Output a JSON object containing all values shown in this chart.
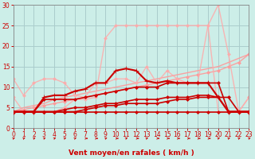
{
  "background_color": "#cceee8",
  "grid_color": "#aacccc",
  "xlabel": "Vent moyen/en rafales ( km/h )",
  "xlim": [
    0,
    23
  ],
  "ylim": [
    0,
    30
  ],
  "yticks": [
    0,
    5,
    10,
    15,
    20,
    25,
    30
  ],
  "xticks": [
    0,
    1,
    2,
    3,
    4,
    5,
    6,
    7,
    8,
    9,
    10,
    11,
    12,
    13,
    14,
    15,
    16,
    17,
    18,
    19,
    20,
    21,
    22,
    23
  ],
  "series": [
    {
      "x": [
        0,
        1,
        2,
        3,
        4,
        5,
        6,
        7,
        8,
        9,
        10,
        11,
        12,
        13,
        14,
        15,
        16,
        17,
        18,
        19,
        20,
        21,
        22,
        23
      ],
      "y": [
        4,
        4,
        4,
        4,
        4,
        4,
        4,
        4,
        4,
        4,
        4,
        4,
        4,
        4,
        4,
        4,
        4,
        4,
        4,
        4,
        4,
        4,
        4,
        4
      ],
      "color": "#cc0000",
      "lw": 1.2,
      "marker": "D",
      "ms": 2,
      "markevery": 1,
      "alpha": 1.0,
      "zorder": 3
    },
    {
      "x": [
        0,
        1,
        2,
        3,
        4,
        5,
        6,
        7,
        8,
        9,
        10,
        11,
        12,
        13,
        14,
        15,
        16,
        17,
        18,
        19,
        20,
        21,
        22,
        23
      ],
      "y": [
        4,
        4,
        4,
        4,
        4,
        4.5,
        5,
        5,
        5.5,
        6,
        6,
        6.5,
        7,
        7,
        7,
        7.5,
        7.5,
        7.5,
        8,
        8,
        7.5,
        4,
        4,
        4
      ],
      "color": "#cc0000",
      "lw": 1.2,
      "marker": "D",
      "ms": 2,
      "markevery": 1,
      "alpha": 1.0,
      "zorder": 3
    },
    {
      "x": [
        0,
        1,
        2,
        3,
        4,
        5,
        6,
        7,
        8,
        9,
        10,
        11,
        12,
        13,
        14,
        15,
        16,
        17,
        18,
        19,
        20,
        21,
        22,
        23
      ],
      "y": [
        4,
        4,
        4,
        7,
        7,
        7,
        7,
        7.5,
        8,
        8.5,
        9,
        9.5,
        10,
        10,
        10,
        11,
        11,
        11,
        11,
        11,
        11,
        4,
        4,
        4
      ],
      "color": "#cc0000",
      "lw": 1.2,
      "marker": "D",
      "ms": 2,
      "markevery": 1,
      "alpha": 1.0,
      "zorder": 3
    },
    {
      "x": [
        0,
        1,
        2,
        3,
        4,
        5,
        6,
        7,
        8,
        9,
        10,
        11,
        12,
        13,
        14,
        15,
        16,
        17,
        18,
        19,
        20,
        21,
        22,
        23
      ],
      "y": [
        4,
        4,
        4,
        7.5,
        8,
        8,
        9,
        9.5,
        11,
        11,
        14,
        14.5,
        14,
        11.5,
        11,
        11.5,
        11,
        11,
        11,
        11,
        7.5,
        4,
        4,
        4
      ],
      "color": "#cc0000",
      "lw": 1.5,
      "marker": "+",
      "ms": 4,
      "markevery": 1,
      "alpha": 1.0,
      "zorder": 4
    },
    {
      "x": [
        0,
        1,
        2,
        3,
        4,
        5,
        6,
        7,
        8,
        9,
        10,
        11,
        12,
        13,
        14,
        15,
        16,
        17,
        18,
        19,
        20,
        21,
        22,
        23
      ],
      "y": [
        4,
        4,
        4,
        4,
        4,
        4,
        4,
        4.5,
        5,
        5.5,
        5.5,
        6,
        6,
        6,
        6,
        6.5,
        7,
        7,
        7.5,
        7.5,
        7.5,
        7.5,
        4,
        4
      ],
      "color": "#cc0000",
      "lw": 1.2,
      "marker": "D",
      "ms": 2,
      "markevery": 1,
      "alpha": 1.0,
      "zorder": 3
    },
    {
      "x": [
        0,
        1,
        2,
        3,
        4,
        5,
        6,
        7,
        8,
        9,
        10,
        11,
        12,
        13,
        14,
        15,
        16,
        17,
        18,
        19,
        20,
        21,
        22,
        23
      ],
      "y": [
        4,
        4.5,
        5,
        5.5,
        6,
        6.5,
        7,
        7.5,
        8,
        8.5,
        9,
        9.5,
        10,
        10.5,
        11,
        11.5,
        12,
        12.5,
        13,
        13.5,
        14,
        15,
        16,
        18
      ],
      "color": "#ff9999",
      "lw": 1.0,
      "marker": "D",
      "ms": 2,
      "markevery": 1,
      "alpha": 0.9,
      "zorder": 2
    },
    {
      "x": [
        0,
        1,
        2,
        3,
        4,
        5,
        6,
        7,
        8,
        9,
        10,
        11,
        12,
        13,
        14,
        15,
        16,
        17,
        18,
        19,
        20,
        21,
        22,
        23
      ],
      "y": [
        4,
        5,
        5.5,
        6,
        7,
        7.5,
        8,
        8.5,
        9,
        9.5,
        10,
        10.5,
        11,
        11.5,
        12,
        12.5,
        13,
        13.5,
        14,
        14.5,
        15,
        16,
        17,
        18
      ],
      "color": "#ff9999",
      "lw": 1.0,
      "marker": null,
      "ms": 0,
      "markevery": 1,
      "alpha": 0.9,
      "zorder": 2
    },
    {
      "x": [
        0,
        1,
        2,
        3,
        4,
        5,
        6,
        7,
        8,
        9,
        10,
        11,
        12,
        13,
        14,
        15,
        16,
        17,
        18,
        19,
        20,
        21,
        22,
        23
      ],
      "y": [
        12,
        8,
        11,
        12,
        12,
        11,
        8,
        7.5,
        11,
        11,
        12,
        12,
        11,
        15,
        11,
        14,
        12,
        11,
        11,
        25,
        30,
        18,
        4,
        7.5
      ],
      "color": "#ffaaaa",
      "lw": 1.0,
      "marker": "D",
      "ms": 2,
      "markevery": 1,
      "alpha": 0.85,
      "zorder": 2
    },
    {
      "x": [
        0,
        1,
        2,
        3,
        4,
        5,
        6,
        7,
        8,
        9,
        10,
        11,
        12,
        13,
        14,
        15,
        16,
        17,
        18,
        19,
        20,
        21,
        22,
        23
      ],
      "y": [
        7.5,
        4,
        4,
        4,
        4,
        5,
        7,
        7,
        7.5,
        22,
        25,
        25,
        25,
        25,
        25,
        25,
        25,
        25,
        25,
        25,
        4,
        4,
        4,
        7.5
      ],
      "color": "#ffaaaa",
      "lw": 1.0,
      "marker": "D",
      "ms": 2,
      "markevery": 1,
      "alpha": 0.85,
      "zorder": 2
    }
  ],
  "axis_label_fontsize": 6.5,
  "tick_fontsize": 5.5
}
